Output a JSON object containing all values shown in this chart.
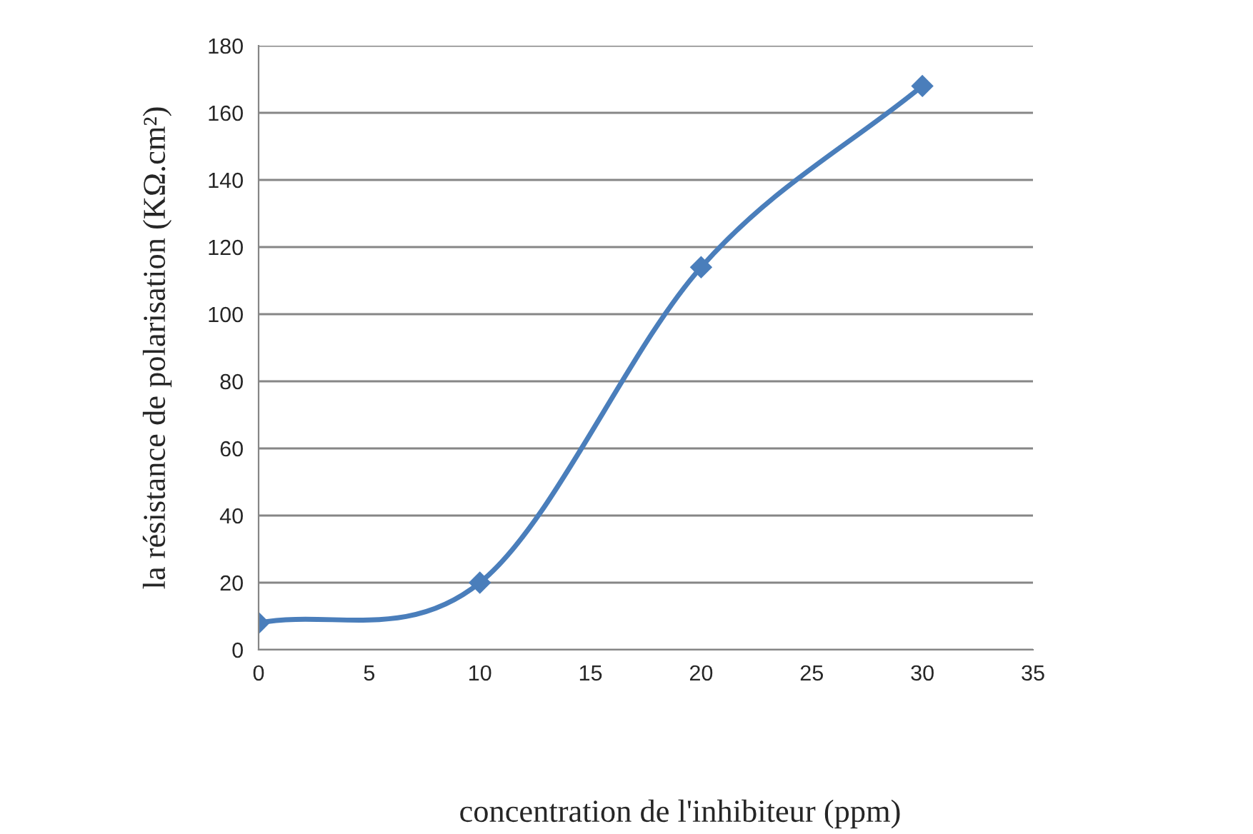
{
  "chart_data": {
    "type": "line",
    "xlabel": "concentration de l'inhibiteur (ppm)",
    "ylabel": "la résistance de polarisation (KΩ.cm²)",
    "x": [
      0,
      10,
      20,
      30
    ],
    "series": [
      {
        "color": "#4a7ebb",
        "values": [
          8,
          20,
          114,
          168
        ]
      }
    ],
    "xlim": [
      0,
      35
    ],
    "xticks": [
      0,
      5,
      10,
      15,
      20,
      25,
      30,
      35
    ],
    "ylim": [
      0,
      180
    ],
    "yticks": [
      0,
      20,
      40,
      60,
      80,
      100,
      120,
      140,
      160,
      180
    ],
    "grid": "y",
    "marker": "diamond",
    "line_style": "solid",
    "legend": false
  }
}
